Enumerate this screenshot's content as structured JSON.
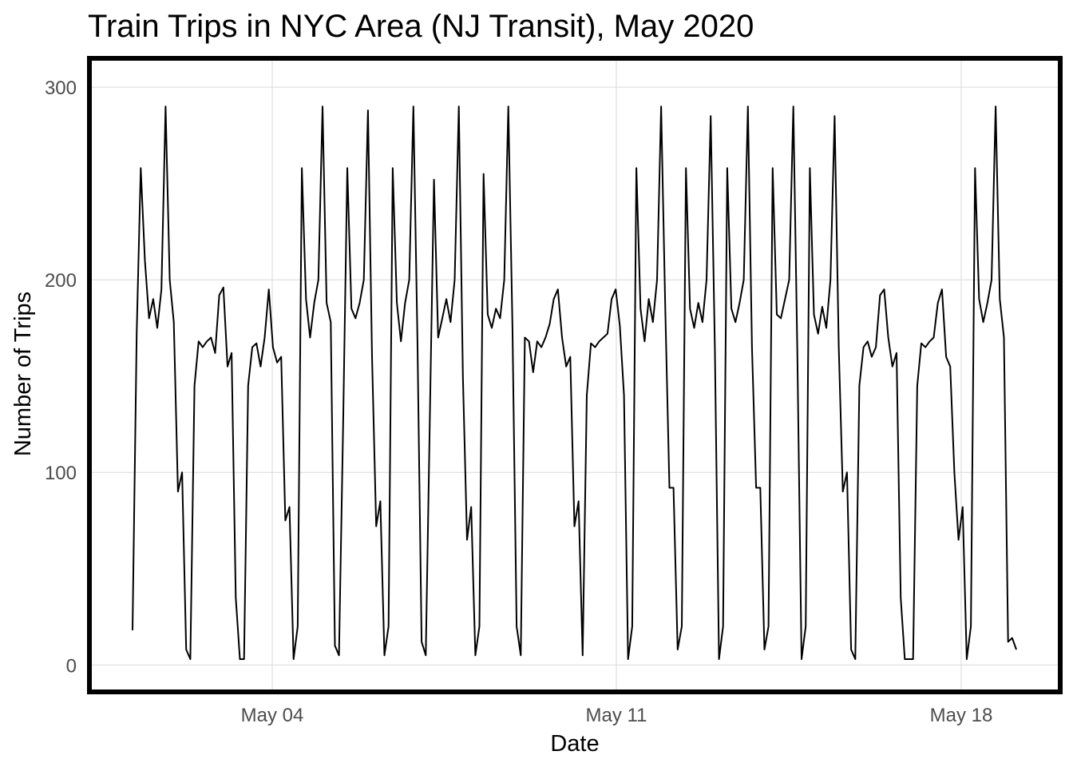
{
  "chart_data": {
    "type": "line",
    "title": "Train Trips in NYC Area (NJ Transit), May 2020",
    "xlabel": "Date",
    "ylabel": "Number of Trips",
    "x_ticks": [
      "May 04",
      "May 11",
      "May 18"
    ],
    "y_ticks": [
      0,
      100,
      200,
      300
    ],
    "ylim": [
      -14,
      315
    ],
    "grid": true,
    "legend": "none",
    "line_color": "#000000",
    "series": [
      {
        "values": [
          18,
          172,
          258,
          210,
          180,
          190,
          175,
          195,
          290,
          200,
          178,
          90,
          100,
          8,
          3,
          145,
          168,
          165,
          168,
          170,
          162,
          192,
          196,
          155,
          162,
          35,
          3,
          3,
          145,
          165,
          167,
          155,
          170,
          195,
          165,
          157,
          160,
          75,
          82,
          3,
          20,
          258,
          190,
          170,
          188,
          200,
          290,
          188,
          178,
          10,
          5,
          125,
          258,
          185,
          180,
          188,
          200,
          288,
          160,
          72,
          85,
          5,
          20,
          258,
          188,
          168,
          188,
          200,
          290,
          168,
          12,
          5,
          128,
          252,
          170,
          180,
          190,
          178,
          200,
          290,
          150,
          65,
          82,
          5,
          20,
          255,
          182,
          175,
          185,
          180,
          200,
          290,
          175,
          20,
          5,
          170,
          168,
          152,
          168,
          165,
          170,
          177,
          190,
          195,
          170,
          155,
          160,
          72,
          85,
          5,
          140,
          167,
          165,
          168,
          170,
          172,
          190,
          195,
          176,
          140,
          3,
          20,
          258,
          185,
          168,
          190,
          178,
          200,
          290,
          185,
          92,
          92,
          8,
          20,
          258,
          185,
          175,
          188,
          178,
          200,
          285,
          165,
          3,
          20,
          258,
          185,
          178,
          188,
          200,
          290,
          165,
          92,
          92,
          8,
          20,
          258,
          182,
          180,
          190,
          200,
          290,
          160,
          3,
          20,
          258,
          182,
          172,
          186,
          175,
          200,
          285,
          165,
          90,
          100,
          8,
          3,
          145,
          165,
          168,
          160,
          165,
          192,
          195,
          170,
          155,
          162,
          35,
          3,
          3,
          3,
          145,
          167,
          165,
          168,
          170,
          188,
          195,
          160,
          155,
          100,
          65,
          82,
          3,
          20,
          258,
          190,
          178,
          188,
          200,
          290,
          190,
          170,
          12,
          14,
          8
        ]
      }
    ]
  }
}
